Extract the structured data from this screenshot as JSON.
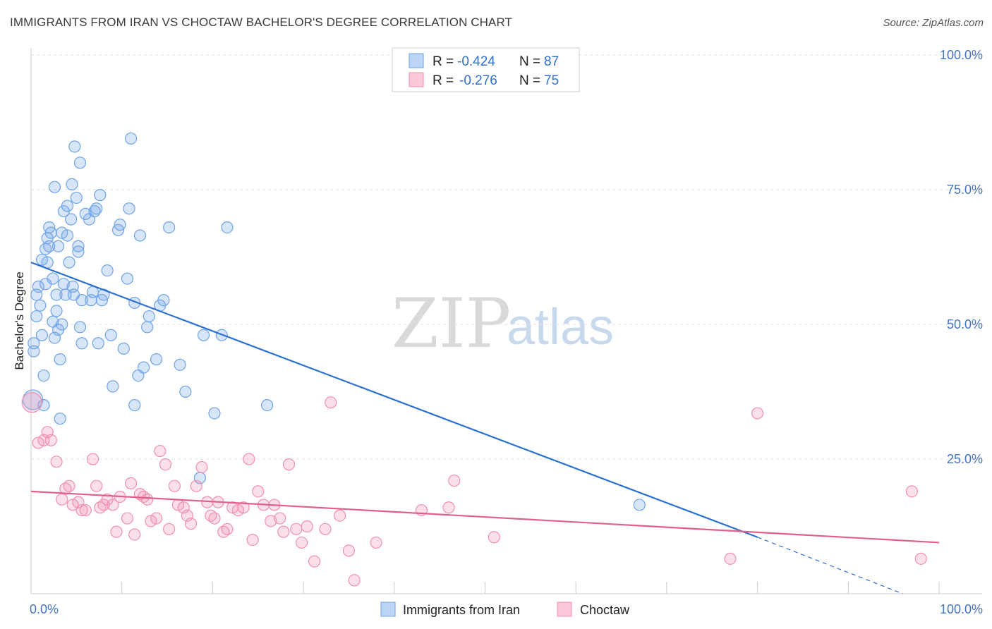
{
  "header": {
    "title": "IMMIGRANTS FROM IRAN VS CHOCTAW BACHELOR'S DEGREE CORRELATION CHART",
    "source": "Source: ZipAtlas.com"
  },
  "watermark": {
    "zip": "ZIP",
    "atlas": "atlas"
  },
  "chart_data": {
    "type": "scatter",
    "ylabel": "Bachelor's Degree",
    "xlim": [
      0,
      100
    ],
    "ylim": [
      0,
      100
    ],
    "x_tick_labels": [
      "0.0%",
      "100.0%"
    ],
    "y_tick_labels": [
      "25.0%",
      "50.0%",
      "75.0%",
      "100.0%"
    ],
    "y_ticks": [
      25,
      50,
      75,
      100
    ],
    "grid": true,
    "legend_position": "top-center",
    "colors": {
      "iran": "#6fa3e6",
      "choctaw": "#f08fb0",
      "iran_line": "#2a70d0",
      "choctaw_line": "#e0608c"
    },
    "stats": [
      {
        "r_label": "R =",
        "r": "-0.424",
        "n_label": "N =",
        "n": "87"
      },
      {
        "r_label": "R =",
        "r": "-0.276",
        "n_label": "N =",
        "n": "75"
      }
    ],
    "series": [
      {
        "name": "Immigrants from Iran",
        "trend": {
          "x": [
            0,
            80
          ],
          "y": [
            61.5,
            10.5
          ],
          "dashed_extension_to": [
            96,
            0
          ]
        },
        "points": [
          [
            0.3,
            46.5
          ],
          [
            0.3,
            45.0
          ],
          [
            0.6,
            55.5
          ],
          [
            0.6,
            51.5
          ],
          [
            0.8,
            57.0
          ],
          [
            1.0,
            53.5
          ],
          [
            1.2,
            62.0
          ],
          [
            1.2,
            48.0
          ],
          [
            1.4,
            40.5
          ],
          [
            1.6,
            57.5
          ],
          [
            1.6,
            64.0
          ],
          [
            1.8,
            66.0
          ],
          [
            1.8,
            61.5
          ],
          [
            2.0,
            68.0
          ],
          [
            2.0,
            64.5
          ],
          [
            2.2,
            67.0
          ],
          [
            2.4,
            58.5
          ],
          [
            2.6,
            47.5
          ],
          [
            2.6,
            75.5
          ],
          [
            2.8,
            52.5
          ],
          [
            2.8,
            55.5
          ],
          [
            3.0,
            64.5
          ],
          [
            3.2,
            43.5
          ],
          [
            3.2,
            32.5
          ],
          [
            3.4,
            67.0
          ],
          [
            3.4,
            50.0
          ],
          [
            3.6,
            71.0
          ],
          [
            3.6,
            57.5
          ],
          [
            3.8,
            55.5
          ],
          [
            4.0,
            72.0
          ],
          [
            4.0,
            66.5
          ],
          [
            4.2,
            61.5
          ],
          [
            4.4,
            69.5
          ],
          [
            4.5,
            76.0
          ],
          [
            4.6,
            57.0
          ],
          [
            4.7,
            55.5
          ],
          [
            4.8,
            83.0
          ],
          [
            5.0,
            73.5
          ],
          [
            5.2,
            64.5
          ],
          [
            5.2,
            63.5
          ],
          [
            5.4,
            80.0
          ],
          [
            5.4,
            49.5
          ],
          [
            5.6,
            54.5
          ],
          [
            5.6,
            46.5
          ],
          [
            6.0,
            70.5
          ],
          [
            6.4,
            69.5
          ],
          [
            6.6,
            54.5
          ],
          [
            7.0,
            71.0
          ],
          [
            7.2,
            71.5
          ],
          [
            7.4,
            46.5
          ],
          [
            7.6,
            74.0
          ],
          [
            7.8,
            54.5
          ],
          [
            8.0,
            55.5
          ],
          [
            8.4,
            60.0
          ],
          [
            9.0,
            38.5
          ],
          [
            9.6,
            67.5
          ],
          [
            9.8,
            68.5
          ],
          [
            10.2,
            45.5
          ],
          [
            10.6,
            58.5
          ],
          [
            10.8,
            71.5
          ],
          [
            11.0,
            84.5
          ],
          [
            11.4,
            54.0
          ],
          [
            11.4,
            35.0
          ],
          [
            12.0,
            66.5
          ],
          [
            12.4,
            42.0
          ],
          [
            12.8,
            49.5
          ],
          [
            13.0,
            51.5
          ],
          [
            13.8,
            43.5
          ],
          [
            14.2,
            53.5
          ],
          [
            14.6,
            54.5
          ],
          [
            15.2,
            68.0
          ],
          [
            16.4,
            42.5
          ],
          [
            17.0,
            37.5
          ],
          [
            18.6,
            21.5
          ],
          [
            19.0,
            48.0
          ],
          [
            20.2,
            33.5
          ],
          [
            21.0,
            48.0
          ],
          [
            21.6,
            68.0
          ],
          [
            26.0,
            35.0
          ],
          [
            0.2,
            36.0
          ],
          [
            1.4,
            35.0
          ],
          [
            2.4,
            50.5
          ],
          [
            3.0,
            49.0
          ],
          [
            6.8,
            56.0
          ],
          [
            8.8,
            48.0
          ],
          [
            11.8,
            40.5
          ],
          [
            67.0,
            16.5
          ]
        ]
      },
      {
        "name": "Choctaw",
        "trend": {
          "x": [
            0,
            100
          ],
          "y": [
            19.0,
            9.5
          ]
        },
        "points": [
          [
            0.1,
            35.5
          ],
          [
            0.8,
            28.0
          ],
          [
            1.4,
            28.5
          ],
          [
            1.8,
            30.0
          ],
          [
            2.2,
            28.5
          ],
          [
            2.8,
            24.5
          ],
          [
            3.4,
            17.5
          ],
          [
            3.8,
            19.5
          ],
          [
            4.2,
            20.0
          ],
          [
            4.6,
            16.5
          ],
          [
            5.2,
            17.0
          ],
          [
            5.6,
            15.5
          ],
          [
            6.0,
            15.5
          ],
          [
            6.8,
            25.0
          ],
          [
            7.2,
            20.0
          ],
          [
            7.6,
            16.0
          ],
          [
            8.0,
            16.5
          ],
          [
            8.4,
            17.5
          ],
          [
            9.0,
            16.5
          ],
          [
            9.4,
            11.5
          ],
          [
            9.8,
            18.0
          ],
          [
            10.6,
            14.0
          ],
          [
            11.0,
            20.5
          ],
          [
            11.4,
            11.0
          ],
          [
            12.0,
            18.5
          ],
          [
            12.4,
            18.0
          ],
          [
            12.8,
            17.5
          ],
          [
            13.2,
            13.5
          ],
          [
            13.8,
            14.0
          ],
          [
            14.2,
            26.5
          ],
          [
            14.8,
            24.0
          ],
          [
            15.2,
            12.0
          ],
          [
            15.8,
            20.0
          ],
          [
            16.2,
            16.5
          ],
          [
            16.8,
            16.0
          ],
          [
            17.2,
            14.5
          ],
          [
            17.6,
            13.0
          ],
          [
            18.2,
            20.0
          ],
          [
            18.8,
            23.5
          ],
          [
            19.4,
            17.0
          ],
          [
            19.8,
            14.5
          ],
          [
            20.2,
            14.0
          ],
          [
            20.6,
            17.0
          ],
          [
            21.2,
            11.5
          ],
          [
            21.6,
            12.0
          ],
          [
            22.2,
            16.0
          ],
          [
            22.8,
            15.5
          ],
          [
            23.4,
            16.0
          ],
          [
            24.0,
            25.0
          ],
          [
            24.4,
            10.0
          ],
          [
            25.0,
            19.0
          ],
          [
            25.6,
            16.5
          ],
          [
            26.4,
            13.5
          ],
          [
            26.8,
            16.5
          ],
          [
            27.4,
            14.0
          ],
          [
            27.8,
            11.5
          ],
          [
            28.4,
            24.0
          ],
          [
            29.2,
            12.0
          ],
          [
            29.8,
            9.5
          ],
          [
            30.4,
            12.5
          ],
          [
            31.2,
            6.0
          ],
          [
            32.4,
            12.0
          ],
          [
            33.0,
            35.5
          ],
          [
            34.0,
            14.5
          ],
          [
            35.0,
            8.0
          ],
          [
            35.6,
            2.5
          ],
          [
            38.0,
            9.5
          ],
          [
            43.0,
            15.5
          ],
          [
            46.0,
            16.0
          ],
          [
            46.6,
            21.0
          ],
          [
            51.0,
            10.5
          ],
          [
            77.0,
            6.5
          ],
          [
            80.0,
            33.5
          ],
          [
            97.0,
            19.0
          ],
          [
            98.0,
            6.5
          ]
        ]
      }
    ]
  },
  "legend": {
    "bottom": [
      "Immigrants from Iran",
      "Choctaw"
    ]
  }
}
